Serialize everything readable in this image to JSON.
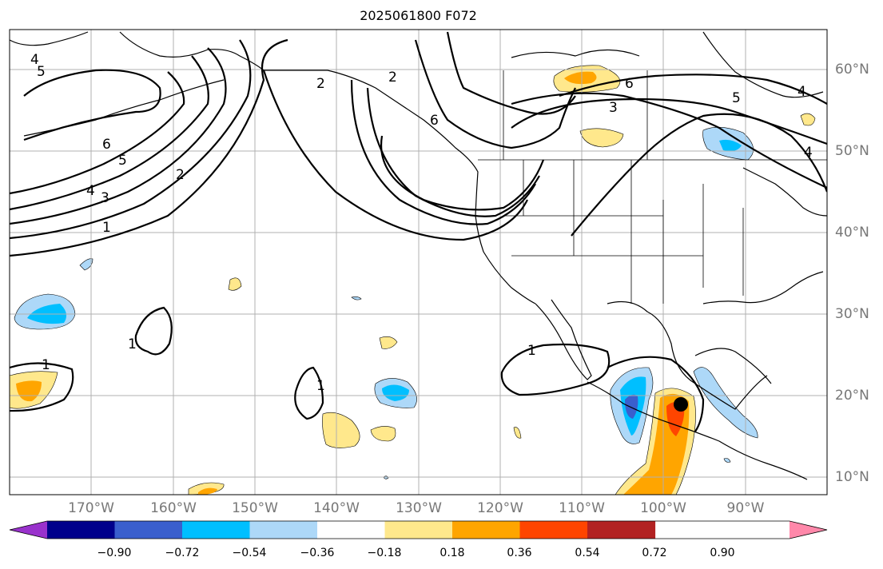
{
  "title": "2025061800 F072",
  "lat_labels": [
    "60°N",
    "50°N",
    "40°N",
    "30°N",
    "20°N",
    "10°N"
  ],
  "lon_labels": [
    "170°W",
    "160°W",
    "150°W",
    "140°W",
    "130°W",
    "120°W",
    "110°W",
    "100°W",
    "90°W"
  ],
  "contour_labels": [
    "4",
    "5",
    "6",
    "5",
    "4",
    "3",
    "2",
    "1",
    "2",
    "2",
    "6",
    "6",
    "3",
    "5",
    "4",
    "4",
    "1",
    "1",
    "1",
    "1"
  ],
  "colorbar": {
    "tick_labels": [
      "−0.90",
      "−0.72",
      "−0.54",
      "−0.36",
      "−0.18",
      "0.18",
      "0.36",
      "0.54",
      "0.72",
      "0.90"
    ],
    "colors": [
      "#9932cc",
      "#00008b",
      "#3a5fcd",
      "#00bfff",
      "#add8f8",
      "#ffffff",
      "#ffe88c",
      "#ffa500",
      "#ff4500",
      "#b22222",
      "#ff88aa"
    ]
  },
  "colors": {
    "line": "#000000",
    "grid": "#b0b0b0",
    "label": "#777777"
  }
}
